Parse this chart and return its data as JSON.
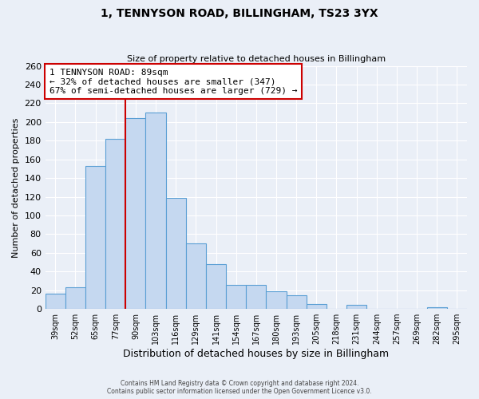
{
  "title": "1, TENNYSON ROAD, BILLINGHAM, TS23 3YX",
  "subtitle": "Size of property relative to detached houses in Billingham",
  "xlabel": "Distribution of detached houses by size in Billingham",
  "ylabel": "Number of detached properties",
  "categories": [
    "39sqm",
    "52sqm",
    "65sqm",
    "77sqm",
    "90sqm",
    "103sqm",
    "116sqm",
    "129sqm",
    "141sqm",
    "154sqm",
    "167sqm",
    "180sqm",
    "193sqm",
    "205sqm",
    "218sqm",
    "231sqm",
    "244sqm",
    "257sqm",
    "269sqm",
    "282sqm",
    "295sqm"
  ],
  "values": [
    16,
    23,
    153,
    182,
    204,
    210,
    119,
    70,
    48,
    26,
    26,
    19,
    15,
    5,
    0,
    4,
    0,
    0,
    0,
    2,
    0
  ],
  "bar_color": "#c5d8f0",
  "bar_edge_color": "#5a9fd4",
  "bar_edge_width": 0.8,
  "vline_color": "#cc0000",
  "annotation_title": "1 TENNYSON ROAD: 89sqm",
  "annotation_line1": "← 32% of detached houses are smaller (347)",
  "annotation_line2": "67% of semi-detached houses are larger (729) →",
  "annotation_box_color": "#ffffff",
  "annotation_box_edge_color": "#cc0000",
  "ylim": [
    0,
    260
  ],
  "yticks": [
    0,
    20,
    40,
    60,
    80,
    100,
    120,
    140,
    160,
    180,
    200,
    220,
    240,
    260
  ],
  "bg_color": "#eaeff7",
  "grid_color": "#ffffff",
  "footer_line1": "Contains HM Land Registry data © Crown copyright and database right 2024.",
  "footer_line2": "Contains public sector information licensed under the Open Government Licence v3.0."
}
